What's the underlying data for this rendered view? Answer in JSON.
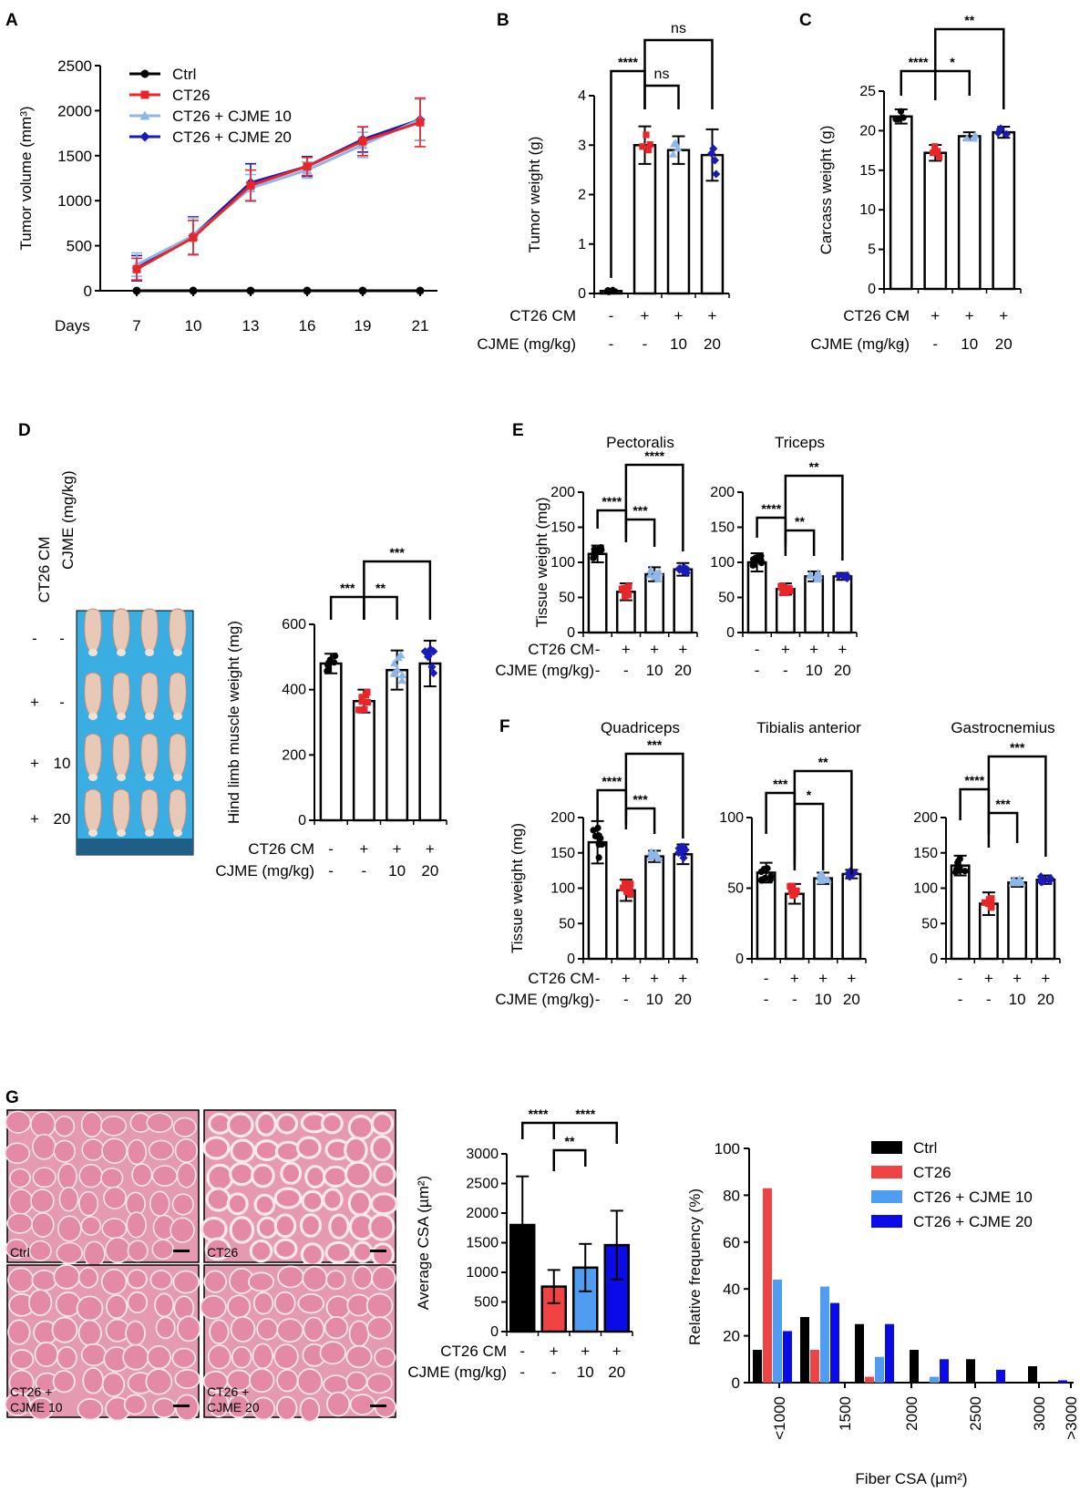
{
  "panel_labels": [
    "A",
    "B",
    "C",
    "D",
    "E",
    "F",
    "G"
  ],
  "colors": {
    "ctrl": "#000000",
    "ct26": "#e8262a",
    "cjme10": "#8fb6e8",
    "cjme20": "#1a1ab8",
    "ct26_bar": "#f04444",
    "cjme10_bar": "#4f9df0",
    "cjme20_bar": "#0b0be8",
    "tray": "#3aaee3"
  },
  "row_labels": {
    "ct26cm": "CT26 CM",
    "cjme": "CJME (mg/kg)",
    "ct26cm_vals": [
      "-",
      "+",
      "+",
      "+"
    ],
    "cjme_vals": [
      "-",
      "-",
      "10",
      "20"
    ]
  },
  "photo_d": {
    "header_ct26": "CT26 CM",
    "header_cjme": "CJME (mg/kg)",
    "rows": [
      [
        "-",
        "-"
      ],
      [
        "+",
        "-"
      ],
      [
        "+",
        "10"
      ],
      [
        "+",
        "20"
      ]
    ]
  },
  "histology": {
    "labels": [
      "Ctrl",
      "CT26",
      "CT26 +\nCJME 10",
      "CT26 +\nCJME 20"
    ]
  },
  "chart_data": [
    {
      "id": "A",
      "type": "line",
      "xlabel": "Days",
      "ylabel": "Tumor volume (mm³)",
      "x": [
        7,
        10,
        13,
        16,
        19,
        21
      ],
      "ylim": [
        0,
        2500
      ],
      "yticks": [
        0,
        500,
        1000,
        1500,
        2000,
        2500
      ],
      "series": [
        {
          "name": "Ctrl",
          "values": [
            0,
            0,
            0,
            0,
            0,
            0
          ],
          "err": [
            0,
            0,
            0,
            0,
            0,
            0
          ],
          "color": "#000000",
          "marker": "circle"
        },
        {
          "name": "CT26",
          "values": [
            240,
            590,
            1170,
            1380,
            1660,
            1870
          ],
          "err": [
            120,
            190,
            170,
            100,
            160,
            270
          ],
          "color": "#e8262a",
          "marker": "square"
        },
        {
          "name": "CT26 + CJME 10",
          "values": [
            290,
            610,
            1140,
            1340,
            1620,
            1900
          ],
          "err": [
            130,
            200,
            150,
            90,
            140,
            230
          ],
          "color": "#8fb6e8",
          "marker": "triangle"
        },
        {
          "name": "CT26 + CJME 20",
          "values": [
            250,
            610,
            1200,
            1380,
            1680,
            1900
          ],
          "err": [
            140,
            210,
            210,
            110,
            140,
            230
          ],
          "color": "#1a1ab8",
          "marker": "diamond"
        }
      ]
    },
    {
      "id": "B",
      "type": "bar",
      "ylabel": "Tumor weight (g)",
      "ylim": [
        0,
        4
      ],
      "yticks": [
        0,
        1,
        2,
        3,
        4
      ],
      "values": [
        0.05,
        3.0,
        2.9,
        2.8
      ],
      "err": [
        0.03,
        0.38,
        0.28,
        0.52
      ],
      "sig": [
        {
          "from": 0,
          "to": 1,
          "label": "****"
        },
        {
          "from": 1,
          "to": 2,
          "label": "ns"
        },
        {
          "from": 1,
          "to": 3,
          "label": "ns"
        }
      ]
    },
    {
      "id": "C",
      "type": "bar",
      "ylabel": "Carcass weight (g)",
      "ylim": [
        0,
        25
      ],
      "yticks": [
        0,
        5,
        10,
        15,
        20,
        25
      ],
      "values": [
        21.8,
        17.2,
        19.3,
        19.8
      ],
      "err": [
        0.9,
        1.0,
        0.5,
        0.7
      ],
      "sig": [
        {
          "from": 0,
          "to": 1,
          "label": "****"
        },
        {
          "from": 1,
          "to": 2,
          "label": "*"
        },
        {
          "from": 1,
          "to": 3,
          "label": "**"
        }
      ]
    },
    {
      "id": "D",
      "type": "bar",
      "ylabel": "Hind limb muscle weight (mg)",
      "ylim": [
        0,
        600
      ],
      "yticks": [
        0,
        200,
        400,
        600
      ],
      "values": [
        480,
        365,
        460,
        480
      ],
      "err": [
        30,
        35,
        60,
        70
      ],
      "sig": [
        {
          "from": 0,
          "to": 1,
          "label": "***"
        },
        {
          "from": 1,
          "to": 2,
          "label": "**"
        },
        {
          "from": 1,
          "to": 3,
          "label": "***"
        }
      ]
    },
    {
      "id": "E1",
      "type": "bar",
      "title": "Pectoralis",
      "ylabel": "Tissue weight (mg)",
      "ylim": [
        0,
        200
      ],
      "yticks": [
        0,
        50,
        100,
        150,
        200
      ],
      "values": [
        112,
        58,
        83,
        90
      ],
      "err": [
        12,
        12,
        10,
        9
      ],
      "sig": [
        {
          "from": 0,
          "to": 1,
          "label": "****"
        },
        {
          "from": 1,
          "to": 2,
          "label": "***"
        },
        {
          "from": 1,
          "to": 3,
          "label": "****"
        }
      ]
    },
    {
      "id": "E2",
      "type": "bar",
      "title": "Triceps",
      "ylim": [
        0,
        200
      ],
      "yticks": [
        0,
        50,
        100,
        150,
        200
      ],
      "values": [
        100,
        62,
        80,
        80
      ],
      "err": [
        13,
        8,
        7,
        5
      ],
      "sig": [
        {
          "from": 0,
          "to": 1,
          "label": "****"
        },
        {
          "from": 1,
          "to": 2,
          "label": "**"
        },
        {
          "from": 1,
          "to": 3,
          "label": "**"
        }
      ]
    },
    {
      "id": "F1",
      "type": "bar",
      "title": "Quadriceps",
      "ylabel": "Tissue weight (mg)",
      "ylim": [
        0,
        200
      ],
      "yticks": [
        0,
        50,
        100,
        150,
        200
      ],
      "values": [
        165,
        97,
        145,
        148
      ],
      "err": [
        30,
        15,
        8,
        14
      ],
      "sig": [
        {
          "from": 0,
          "to": 1,
          "label": "****"
        },
        {
          "from": 1,
          "to": 2,
          "label": "***"
        },
        {
          "from": 1,
          "to": 3,
          "label": "***"
        }
      ]
    },
    {
      "id": "F2",
      "type": "bar",
      "title": "Tibialis anterior",
      "ylim": [
        0,
        100
      ],
      "yticks": [
        0,
        50,
        100
      ],
      "values": [
        61,
        46,
        57,
        60
      ],
      "err": [
        7,
        7,
        4,
        3
      ],
      "sig": [
        {
          "from": 0,
          "to": 1,
          "label": "***"
        },
        {
          "from": 1,
          "to": 2,
          "label": "*"
        },
        {
          "from": 1,
          "to": 3,
          "label": "**"
        }
      ]
    },
    {
      "id": "F3",
      "type": "bar",
      "title": "Gastrocnemius",
      "ylim": [
        0,
        200
      ],
      "yticks": [
        0,
        50,
        100,
        150,
        200
      ],
      "values": [
        132,
        78,
        108,
        112
      ],
      "err": [
        14,
        16,
        6,
        6
      ],
      "sig": [
        {
          "from": 0,
          "to": 1,
          "label": "****"
        },
        {
          "from": 1,
          "to": 2,
          "label": "***"
        },
        {
          "from": 1,
          "to": 3,
          "label": "***"
        }
      ]
    },
    {
      "id": "G1",
      "type": "bar",
      "ylabel": "Average CSA (µm²)",
      "ylim": [
        0,
        3000
      ],
      "yticks": [
        0,
        500,
        1000,
        1500,
        2000,
        2500,
        3000
      ],
      "values": [
        1800,
        760,
        1080,
        1460
      ],
      "err": [
        820,
        280,
        400,
        580
      ],
      "sig": [
        {
          "from": 0,
          "to": 1,
          "label": "****"
        },
        {
          "from": 1,
          "to": 2,
          "label": "**"
        },
        {
          "from": 1,
          "to": 3,
          "label": "****"
        }
      ]
    },
    {
      "id": "G2",
      "type": "bar",
      "xlabel": "Fiber CSA (µm²)",
      "ylabel": "Relative frequency (%)",
      "ylim": [
        0,
        100
      ],
      "yticks": [
        0,
        20,
        40,
        60,
        80,
        100
      ],
      "categories": [
        "<1000",
        "1500",
        "2000",
        "2500",
        "3000",
        ">3000"
      ],
      "series": [
        {
          "name": "Ctrl",
          "color": "#000000",
          "values": [
            14,
            28,
            25,
            14,
            10,
            7
          ]
        },
        {
          "name": "CT26",
          "color": "#f04444",
          "values": [
            83,
            14,
            2.5,
            0,
            0,
            0
          ]
        },
        {
          "name": "CT26 + CJME 10",
          "color": "#4f9df0",
          "values": [
            44,
            41,
            11,
            2.5,
            0,
            0
          ]
        },
        {
          "name": "CT26 + CJME 20",
          "color": "#0b0be8",
          "values": [
            22,
            34,
            25,
            10,
            5.5,
            1
          ]
        }
      ]
    }
  ]
}
